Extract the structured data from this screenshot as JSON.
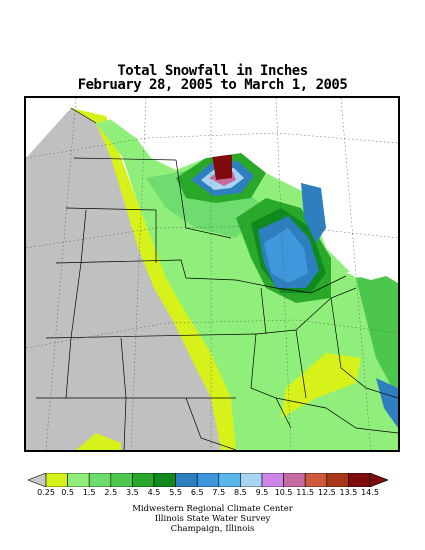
{
  "title": {
    "line1": "Total Snowfall in Inches",
    "line2": "February 28, 2005 to March 1, 2005"
  },
  "legend": {
    "labels": [
      "0.25",
      "0.5",
      "1.5",
      "2.5",
      "3.5",
      "4.5",
      "5.5",
      "6.5",
      "7.5",
      "8.5",
      "9.5",
      "10.5",
      "11.5",
      "12.5",
      "13.5",
      "14.5"
    ],
    "colors": [
      "#d6f21a",
      "#90ef7a",
      "#6fdc6f",
      "#4cc64c",
      "#2aa82a",
      "#0f8a1f",
      "#2e7fc0",
      "#3f98dc",
      "#58b6ea",
      "#a9d4f1",
      "#cc86ea",
      "#c86aa0",
      "#cc5a3c",
      "#a8361a",
      "#7e0c0c"
    ],
    "below_color": "#c8c8c8"
  },
  "map": {
    "no_data_color": "#c0c0c0",
    "lake_color": "#ffffff"
  },
  "credits": {
    "line1": "Midwestern Regional Climate Center",
    "line2": "Illinois State Water Survey",
    "line3": "Champaign, Illinois"
  }
}
